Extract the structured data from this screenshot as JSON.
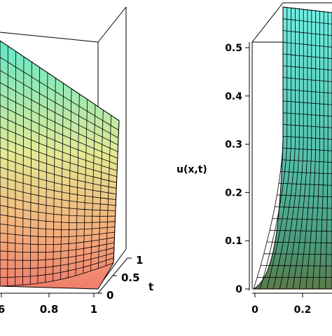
{
  "chart_data": [
    {
      "type": "surface",
      "title": "",
      "xlabel": "",
      "ylabel": "",
      "zlabel": "",
      "x_ticks": [
        "6",
        "0.8",
        "1"
      ],
      "t_label": "t",
      "t_ticks": [
        "0",
        "0.5",
        "1"
      ],
      "xlim": [
        0,
        1
      ],
      "tlim": [
        0,
        1
      ],
      "colors": {
        "top": "#5fe8c8",
        "middle": "#e8e890",
        "bottom": "#f08070",
        "mesh": "#000000"
      }
    },
    {
      "type": "surface",
      "title": "",
      "zlabel": "u(x,t)",
      "z_ticks": [
        "0",
        "0.1",
        "0.2",
        "0.3",
        "0.4",
        "0.5"
      ],
      "zlim": [
        0,
        0.5
      ],
      "x_ticks": [
        "0",
        "0.2"
      ],
      "xlim": [
        0,
        1
      ],
      "colors": {
        "top": "#6ee8e0",
        "middle": "#4ab0a0",
        "bottom": "#6a8f5a",
        "mesh": "#000000"
      }
    }
  ]
}
